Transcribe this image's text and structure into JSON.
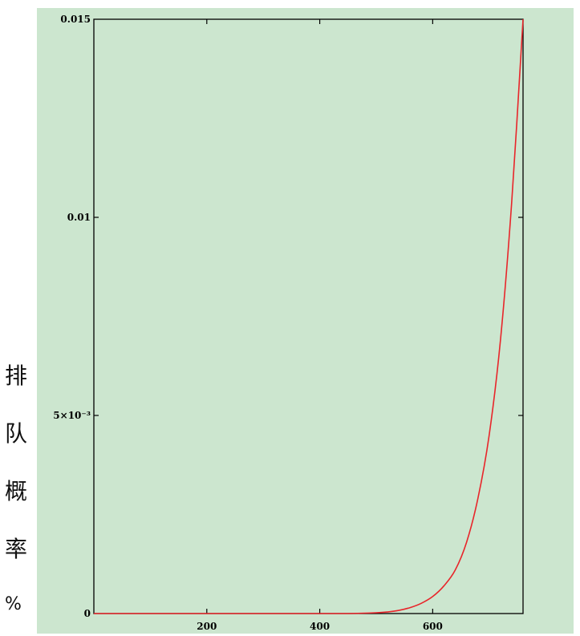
{
  "chart_data": {
    "type": "line",
    "title": "",
    "xlabel": "",
    "ylabel": "排队概率%",
    "ylabel_chars": [
      "排",
      "队",
      "概",
      "率",
      "%"
    ],
    "xlim": [
      0,
      760
    ],
    "ylim": [
      0,
      0.015
    ],
    "x_ticks": [
      200,
      400,
      600
    ],
    "x_tick_labels": [
      "200",
      "400",
      "600"
    ],
    "y_ticks": [
      0,
      0.005,
      0.01,
      0.015
    ],
    "y_tick_labels": [
      "0",
      "5×10⁻³",
      "0.01",
      "0.015"
    ],
    "grid": false,
    "series": [
      {
        "color": "#e8252a",
        "x": [
          0,
          100,
          200,
          300,
          400,
          450,
          500,
          520,
          540,
          560,
          580,
          600,
          620,
          640,
          660,
          680,
          700,
          720,
          740,
          760
        ],
        "y": [
          0,
          0,
          0,
          0,
          0,
          0,
          2e-05,
          4e-05,
          8e-05,
          0.00015,
          0.00026,
          0.00043,
          0.0007,
          0.0011,
          0.0018,
          0.0029,
          0.0045,
          0.0069,
          0.0104,
          0.015
        ]
      }
    ]
  },
  "colors": {
    "background": "#cce6cf",
    "axis": "#000000",
    "line": "#e8252a"
  }
}
